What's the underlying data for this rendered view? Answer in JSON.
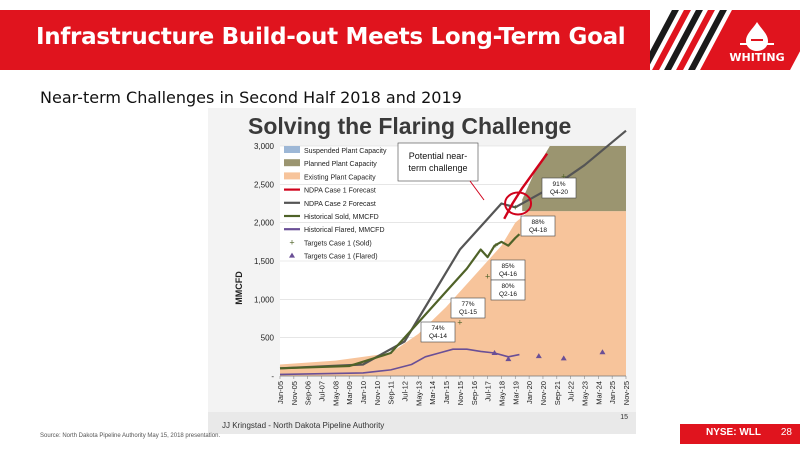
{
  "header": {
    "title": "Infrastructure Build-out Meets Long-Term Goal",
    "logo": "WHITING"
  },
  "subtitle": "Near-term Challenges in Second Half 2018 and 2019",
  "footer": {
    "exchange": "NYSE: WLL",
    "page": "28",
    "source": "Source: North Dakota Pipeline Authority May 15, 2018 presentation."
  },
  "chart_data": {
    "type": "line",
    "title": "Solving the Flaring Challenge",
    "ylabel": "MMCFD",
    "ylim": [
      0,
      3000
    ],
    "yticks": [
      "3,000",
      "2,500",
      "2,000",
      "1,500",
      "1,000",
      "500",
      "-"
    ],
    "x_ticks": [
      "Jan-05",
      "Nov-05",
      "Sep-06",
      "Jul-07",
      "May-08",
      "Mar-09",
      "Jan-10",
      "Nov-10",
      "Sep-11",
      "Jul-12",
      "May-13",
      "Mar-14",
      "Jan-15",
      "Nov-15",
      "Sep-16",
      "Jul-17",
      "May-18",
      "Mar-19",
      "Jan-20",
      "Nov-20",
      "Sep-21",
      "Jul-22",
      "May-23",
      "Mar-24",
      "Jan-25",
      "Nov-25"
    ],
    "legend": [
      "Suspended Plant Capacity",
      "Planned Plant Capacity",
      "Existing Plant Capacity",
      "NDPA Case 1 Forecast",
      "NDPA Case 2 Forecast",
      "Historical Sold, MMCFD",
      "Historical Flared, MMCFD",
      "Targets Case 1 (Sold)",
      "Targets Case 1 (Flared)"
    ],
    "legend_placement": "top-left",
    "colors": {
      "suspended": "#9db7d6",
      "planned": "#9b9570",
      "existing": "#f7c49b",
      "case1": "#d0021b",
      "case2": "#555555",
      "sold": "#4f6228",
      "flared": "#6a4f96"
    },
    "series": [
      {
        "name": "Existing Plant Capacity",
        "x": [
          0,
          4,
          8,
          10,
          12,
          14,
          15,
          16,
          17,
          18,
          20,
          23,
          25
        ],
        "y": [
          150,
          200,
          300,
          550,
          900,
          1300,
          1500,
          1700,
          2000,
          2150,
          2150,
          2150,
          2150
        ]
      },
      {
        "name": "Planned Plant Capacity",
        "x": [
          17.5,
          18.5,
          19.5,
          25
        ],
        "y": [
          2300,
          2700,
          3000,
          3000
        ]
      },
      {
        "name": "NDPA Case 2 Forecast",
        "x": [
          0,
          6,
          9,
          11,
          13,
          15,
          16,
          17,
          18,
          20,
          22,
          25
        ],
        "y": [
          100,
          150,
          450,
          1050,
          1650,
          2050,
          2250,
          2200,
          2300,
          2500,
          2750,
          3200
        ]
      },
      {
        "name": "NDPA Case 1 Forecast",
        "x": [
          16.2,
          16.8,
          17.5,
          18.5,
          19.3
        ],
        "y": [
          2050,
          2250,
          2450,
          2700,
          2900
        ]
      },
      {
        "name": "Historical Sold, MMCFD",
        "x": [
          0,
          5,
          8,
          10,
          12,
          13.5,
          14.5,
          15,
          15.5,
          16,
          16.5,
          17,
          17.3
        ],
        "y": [
          100,
          130,
          300,
          700,
          1100,
          1400,
          1650,
          1550,
          1700,
          1750,
          1700,
          1800,
          1850
        ]
      },
      {
        "name": "Historical Flared, MMCFD",
        "x": [
          0,
          6,
          8,
          9.5,
          10.5,
          11.5,
          12.5,
          13.5,
          14.5,
          15.5,
          16.5,
          17.3
        ],
        "y": [
          20,
          40,
          80,
          150,
          250,
          300,
          350,
          350,
          320,
          300,
          250,
          280
        ]
      }
    ],
    "targets_sold": {
      "x": [
        13,
        15,
        15.6,
        17,
        20.5
      ],
      "y": [
        700,
        1300,
        1700,
        2200,
        2600
      ]
    },
    "targets_flared": {
      "x": [
        15.5,
        16.5,
        18.7,
        20.5,
        23.3
      ],
      "y": [
        300,
        220,
        260,
        230,
        310
      ]
    },
    "annotations": [
      {
        "text": "Potential near-term challenge",
        "lines": [
          "Potential near-",
          "term challenge"
        ]
      },
      {
        "text": "91% Q4-20",
        "lines": [
          "91%",
          "Q4-20"
        ]
      },
      {
        "text": "88% Q4-18",
        "lines": [
          "88%",
          "Q4-18"
        ]
      },
      {
        "text": "85% Q4-16",
        "lines": [
          "85%",
          "Q4-16"
        ]
      },
      {
        "text": "80% Q2-16",
        "lines": [
          "80%",
          "Q2-16"
        ]
      },
      {
        "text": "77% Q1-15",
        "lines": [
          "77%",
          "Q1-15"
        ]
      },
      {
        "text": "74% Q4-14",
        "lines": [
          "74%",
          "Q4-14"
        ]
      }
    ],
    "credit": "JJ Kringstad - North Dakota Pipeline Authority",
    "slide_number": "15"
  }
}
